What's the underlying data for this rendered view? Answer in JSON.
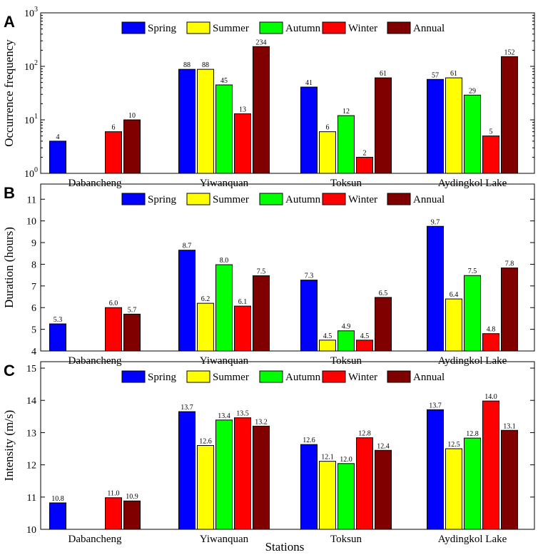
{
  "figure": {
    "xlabel": "Stations",
    "colors": {
      "Spring": "#0000FF",
      "Summer": "#FFFF00",
      "Autumn": "#00FF00",
      "Winter": "#FF0000",
      "Annual": "#800000"
    }
  },
  "chart_data": [
    {
      "type": "bar",
      "panel_label": "A",
      "ylabel": "Occurrence frequency",
      "yscale": "log",
      "ylim": [
        1,
        1000
      ],
      "ytick_labels": [
        {
          "base": "10",
          "exp": "0",
          "value": 1
        },
        {
          "base": "10",
          "exp": "1",
          "value": 10
        },
        {
          "base": "10",
          "exp": "2",
          "value": 100
        },
        {
          "base": "10",
          "exp": "3",
          "value": 1000
        }
      ],
      "legend_position": "top",
      "categories": [
        "Dabancheng",
        "Yiwanquan",
        "Toksun",
        "Aydingkol Lake"
      ],
      "series": [
        {
          "name": "Spring",
          "values": [
            4,
            88,
            41,
            57
          ],
          "labels": [
            "4",
            "88",
            "41",
            "57"
          ]
        },
        {
          "name": "Summer",
          "values": [
            null,
            88,
            6,
            61
          ],
          "labels": [
            null,
            "88",
            "6",
            "61"
          ]
        },
        {
          "name": "Autumn",
          "values": [
            null,
            45,
            12,
            29
          ],
          "labels": [
            null,
            "45",
            "12",
            "29"
          ]
        },
        {
          "name": "Winter",
          "values": [
            6,
            13,
            2,
            5
          ],
          "labels": [
            "6",
            "13",
            "2",
            "5"
          ]
        },
        {
          "name": "Annual",
          "values": [
            10,
            234,
            61,
            152
          ],
          "labels": [
            "10",
            "234",
            "61",
            "152"
          ]
        }
      ]
    },
    {
      "type": "bar",
      "panel_label": "B",
      "ylabel": "Duration (hours)",
      "yscale": "linear",
      "ylim": [
        4,
        11.7
      ],
      "ytick_labels": [
        {
          "text": "4",
          "value": 4
        },
        {
          "text": "5",
          "value": 5
        },
        {
          "text": "6",
          "value": 6
        },
        {
          "text": "7",
          "value": 7
        },
        {
          "text": "8",
          "value": 8
        },
        {
          "text": "9",
          "value": 9
        },
        {
          "text": "10",
          "value": 10
        },
        {
          "text": "11",
          "value": 11
        }
      ],
      "legend_position": "top",
      "categories": [
        "Dabancheng",
        "Yiwanquan",
        "Toksun",
        "Aydingkol Lake"
      ],
      "series": [
        {
          "name": "Spring",
          "values": [
            5.25,
            8.65,
            7.27,
            9.75
          ],
          "labels": [
            "5.3",
            "8.7",
            "7.3",
            "9.7"
          ]
        },
        {
          "name": "Summer",
          "values": [
            null,
            6.2,
            4.5,
            6.4
          ],
          "labels": [
            null,
            "6.2",
            "4.5",
            "6.4"
          ]
        },
        {
          "name": "Autumn",
          "values": [
            null,
            7.98,
            4.93,
            7.48
          ],
          "labels": [
            null,
            "8.0",
            "4.9",
            "7.5"
          ]
        },
        {
          "name": "Winter",
          "values": [
            6.0,
            6.07,
            4.5,
            4.8
          ],
          "labels": [
            "6.0",
            "6.1",
            "4.5",
            "4.8"
          ]
        },
        {
          "name": "Annual",
          "values": [
            5.7,
            7.47,
            6.47,
            7.83
          ],
          "labels": [
            "5.7",
            "7.5",
            "6.5",
            "7.8"
          ]
        }
      ]
    },
    {
      "type": "bar",
      "panel_label": "C",
      "ylabel": "Intensity (m/s)",
      "yscale": "linear",
      "ylim": [
        10,
        15.2
      ],
      "ytick_labels": [
        {
          "text": "10",
          "value": 10
        },
        {
          "text": "11",
          "value": 11
        },
        {
          "text": "12",
          "value": 12
        },
        {
          "text": "13",
          "value": 13
        },
        {
          "text": "14",
          "value": 14
        },
        {
          "text": "15",
          "value": 15
        }
      ],
      "legend_position": "top",
      "categories": [
        "Dabancheng",
        "Yiwanquan",
        "Toksun",
        "Aydingkol Lake"
      ],
      "series": [
        {
          "name": "Spring",
          "values": [
            10.82,
            13.65,
            12.63,
            13.71
          ],
          "labels": [
            "10.8",
            "13.7",
            "12.6",
            "13.7"
          ]
        },
        {
          "name": "Summer",
          "values": [
            null,
            12.6,
            12.11,
            12.5
          ],
          "labels": [
            null,
            "12.6",
            "12.1",
            "12.5"
          ]
        },
        {
          "name": "Autumn",
          "values": [
            null,
            13.39,
            12.04,
            12.83
          ],
          "labels": [
            null,
            "13.4",
            "12.0",
            "12.8"
          ]
        },
        {
          "name": "Winter",
          "values": [
            10.98,
            13.46,
            12.84,
            13.98
          ],
          "labels": [
            "11.0",
            "13.5",
            "12.8",
            "14.0"
          ]
        },
        {
          "name": "Annual",
          "values": [
            10.88,
            13.2,
            12.45,
            13.07
          ],
          "labels": [
            "10.9",
            "13.2",
            "12.4",
            "13.1"
          ]
        }
      ]
    }
  ]
}
